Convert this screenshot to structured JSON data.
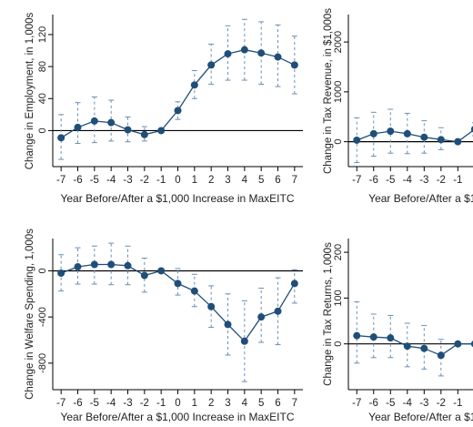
{
  "chart_data": [
    {
      "type": "line",
      "x": [
        -7,
        -6,
        -5,
        -4,
        -3,
        -2,
        -1,
        0,
        1,
        2,
        3,
        4,
        5,
        6,
        7
      ],
      "series": [
        {
          "values": [
            -9,
            4,
            12,
            10,
            1,
            -5,
            0,
            25,
            57,
            82,
            96,
            101,
            97,
            92,
            82
          ],
          "ci_low": [
            -36,
            -16,
            -15,
            -13,
            -14,
            -13,
            0,
            14,
            40,
            58,
            63,
            63,
            58,
            55,
            46
          ],
          "ci_high": [
            20,
            35,
            42,
            38,
            17,
            5,
            0,
            36,
            75,
            108,
            131,
            139,
            136,
            132,
            118
          ]
        }
      ],
      "xlabel": "Year Before/After a $1,000 Increase in MaxEITC",
      "ylabel": "Change in Employment, in 1,000s",
      "yticks": [
        0,
        40,
        80,
        120
      ],
      "ylim": [
        -45,
        145
      ],
      "zero_line": true,
      "colors": {
        "series": "#1f4e79",
        "ci": "#6b8fb5",
        "zero": "#000000"
      }
    },
    {
      "type": "line",
      "x": [
        -7,
        -6,
        -5,
        -4,
        -3,
        -2,
        -1,
        0
      ],
      "series": [
        {
          "values": [
            30,
            160,
            210,
            160,
            90,
            40,
            0,
            250
          ],
          "ci_low": [
            -420,
            -290,
            -230,
            -240,
            -230,
            -160,
            0,
            120
          ],
          "ci_high": [
            480,
            590,
            650,
            570,
            420,
            280,
            0,
            380
          ]
        }
      ],
      "xlabel": "Year Before/After a $1,",
      "ylabel": "Change in Tax Revenue, in $1,000s",
      "xticks_visible": [
        "-7",
        "-6",
        "-5",
        "-4",
        "-3",
        "-2",
        "-1"
      ],
      "yticks": [
        0,
        1000,
        2000
      ],
      "ylim": [
        -500,
        2550
      ],
      "zero_line": true,
      "colors": {
        "series": "#1f4e79",
        "ci": "#6b8fb5",
        "zero": "#000000"
      }
    },
    {
      "type": "line",
      "x": [
        -7,
        -6,
        -5,
        -4,
        -3,
        -2,
        -1,
        0,
        1,
        2,
        3,
        4,
        5,
        6,
        7
      ],
      "series": [
        {
          "values": [
            -20,
            35,
            55,
            55,
            45,
            -40,
            0,
            -110,
            -175,
            -310,
            -465,
            -610,
            -400,
            -350,
            -110
          ],
          "ci_low": [
            -175,
            -115,
            -115,
            -120,
            -120,
            -185,
            0,
            -210,
            -310,
            -490,
            -730,
            -960,
            -620,
            -640,
            -280
          ],
          "ci_high": [
            140,
            200,
            215,
            240,
            215,
            110,
            0,
            20,
            -30,
            -130,
            -200,
            -260,
            -150,
            -60,
            10
          ]
        }
      ],
      "xlabel": "Year Before/After a $1,000 Increase in MaxEITC",
      "ylabel": "Change in Welfare Spending, 1,000s",
      "yticks": [
        0,
        -400,
        -800
      ],
      "ylim": [
        -1030,
        280
      ],
      "zero_line": true,
      "colors": {
        "series": "#1f4e79",
        "ci": "#6b8fb5",
        "zero": "#000000"
      }
    },
    {
      "type": "line",
      "x": [
        -7,
        -6,
        -5,
        -4,
        -3,
        -2,
        -1,
        0
      ],
      "series": [
        {
          "values": [
            18,
            15,
            13,
            -5,
            -10,
            -25,
            0,
            0
          ],
          "ci_low": [
            -42,
            -30,
            -30,
            -50,
            -55,
            -70,
            0,
            0
          ],
          "ci_high": [
            92,
            65,
            62,
            45,
            40,
            10,
            0,
            0
          ]
        }
      ],
      "xlabel": "Year Before/After a $1,",
      "ylabel": "Change in Tax Returns, 1,000s",
      "xticks_visible": [
        "-7",
        "-6",
        "-5",
        "-4",
        "-3",
        "-2",
        "-1"
      ],
      "yticks": [
        0,
        100,
        200
      ],
      "ylim": [
        -100,
        230
      ],
      "zero_line": true,
      "colors": {
        "series": "#1f4e79",
        "ci": "#6b8fb5",
        "zero": "#000000"
      }
    }
  ]
}
